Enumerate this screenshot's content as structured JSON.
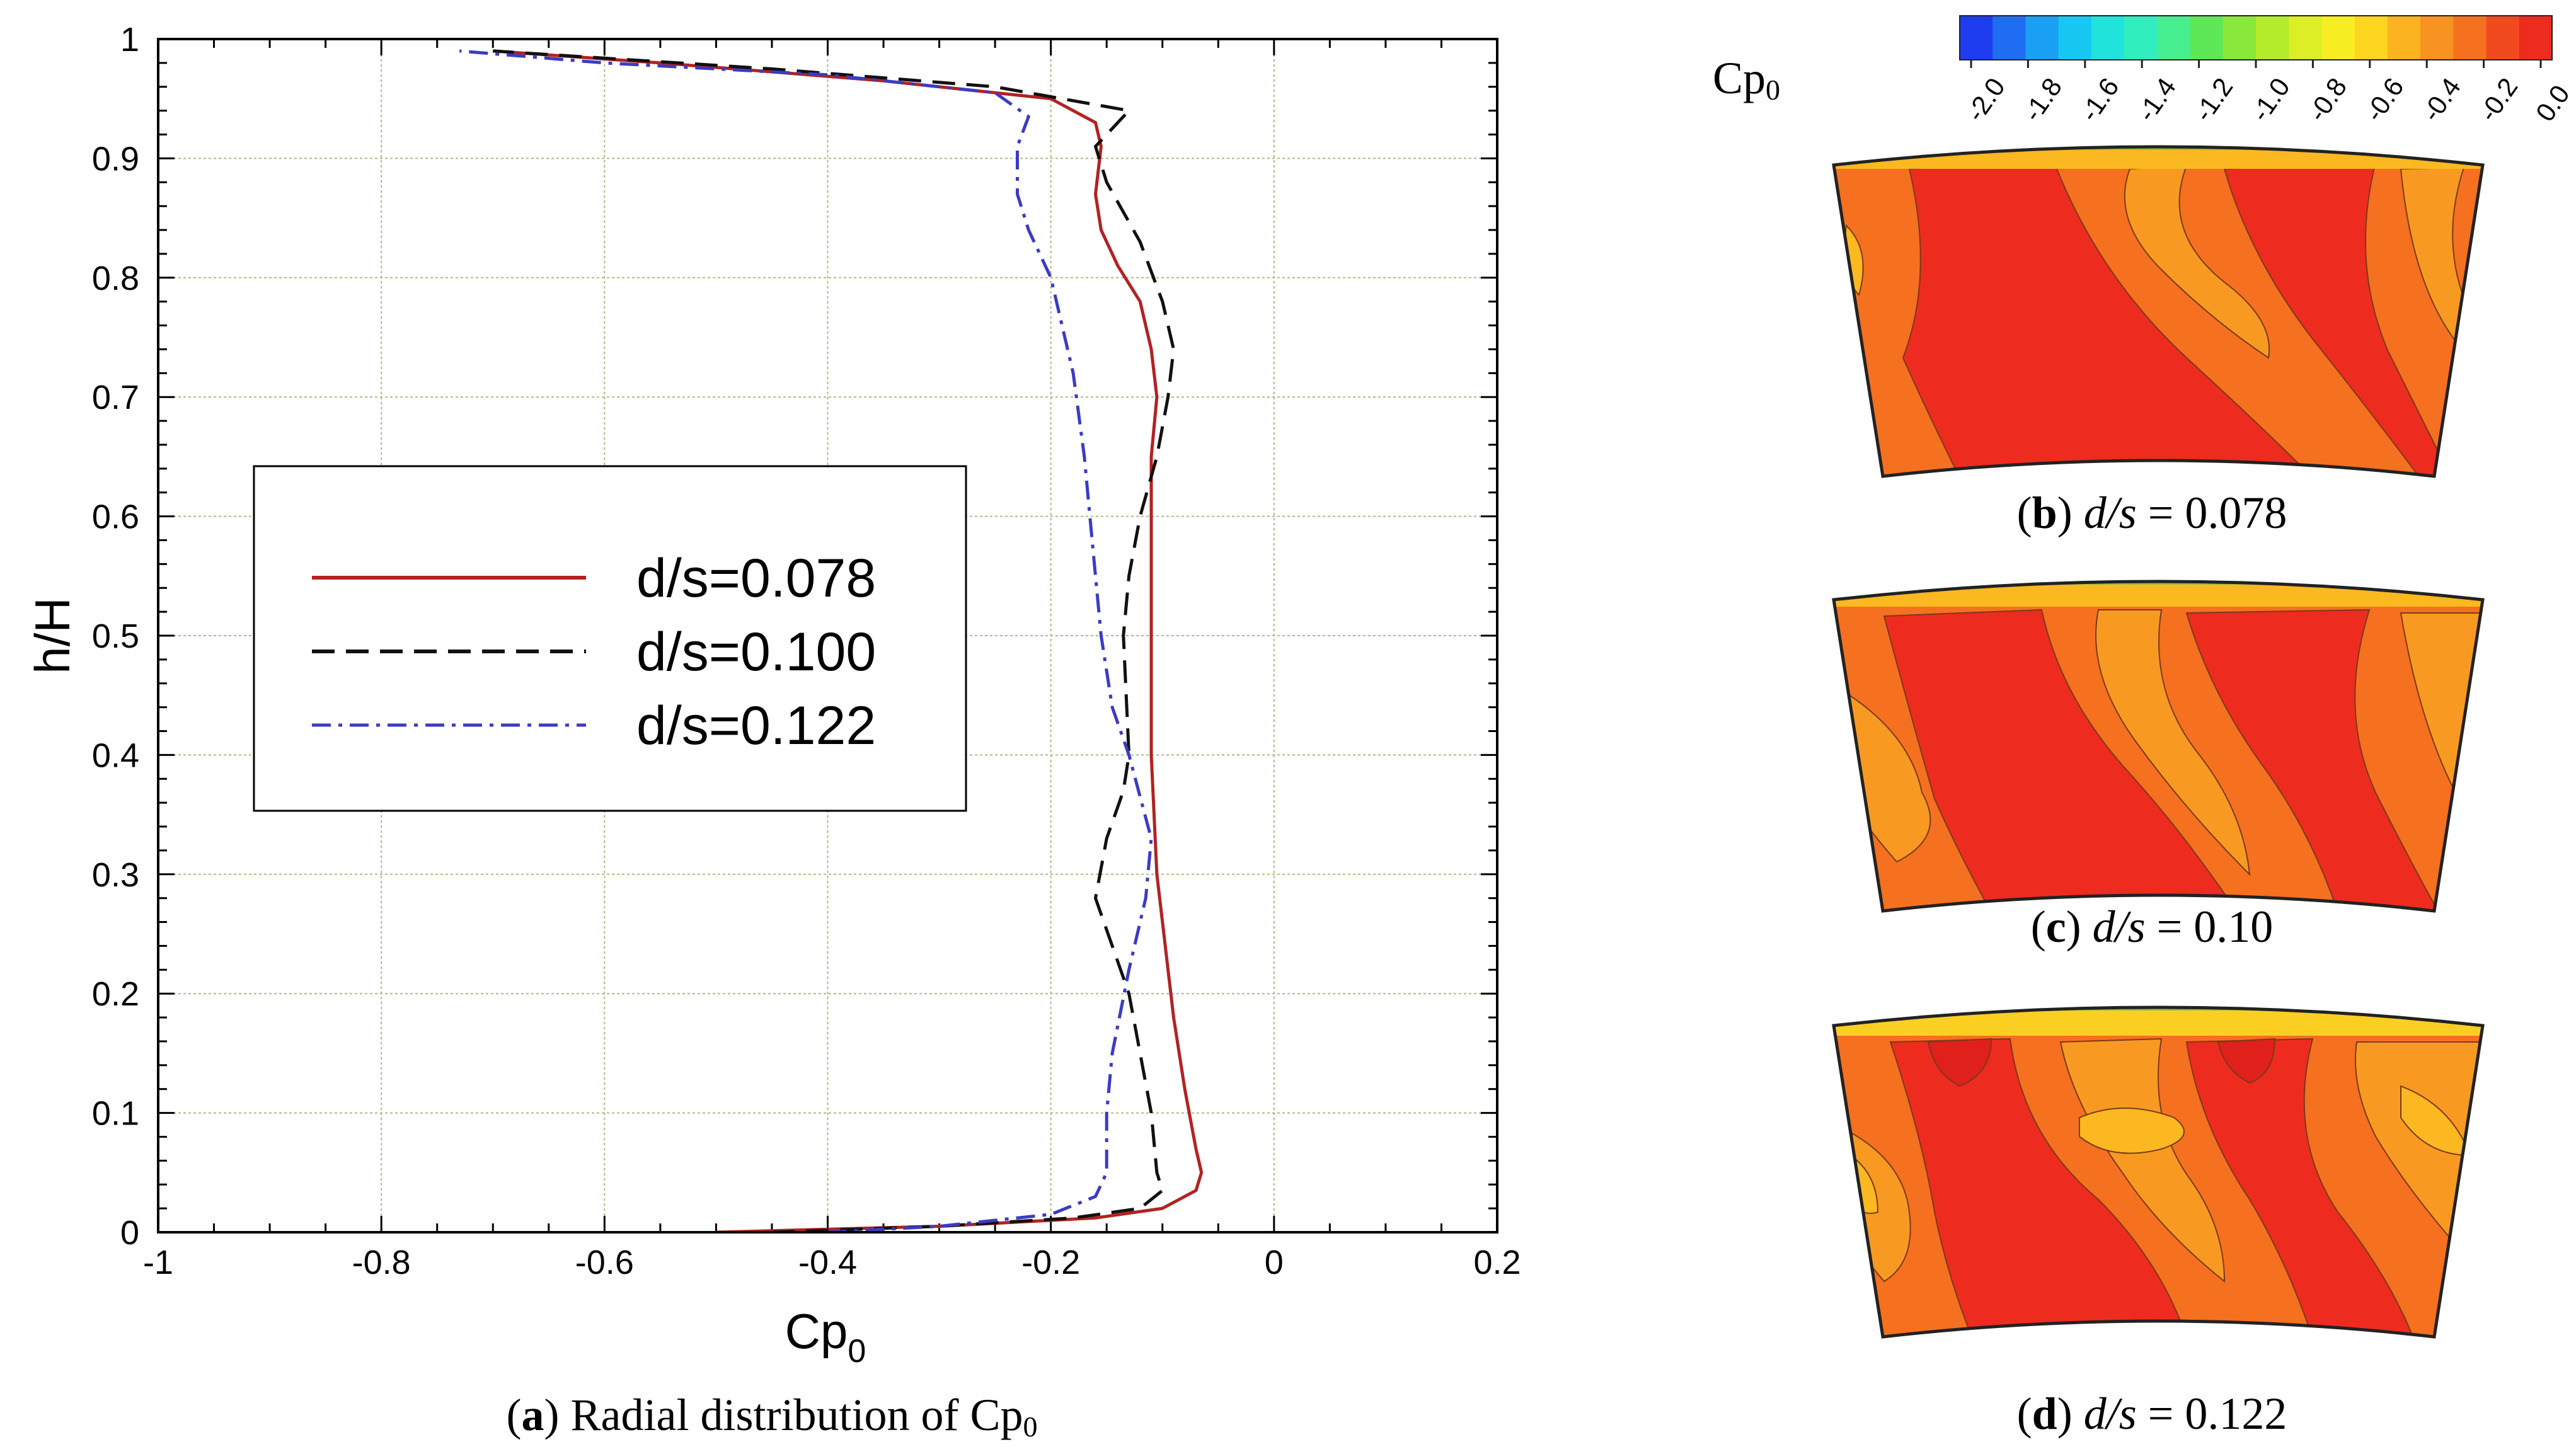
{
  "chart_data": [
    {
      "type": "line",
      "title": "",
      "xlabel": "Cp",
      "xlabel_sub": "0",
      "ylabel": "h/H",
      "xlim": [
        -1,
        0.2
      ],
      "ylim": [
        0,
        1
      ],
      "xticks": [
        -1,
        -0.8,
        -0.6,
        -0.4,
        -0.2,
        0,
        0.2
      ],
      "xtick_labels": [
        "-1",
        "-0.8",
        "-0.6",
        "-0.4",
        "-0.2",
        "0",
        "0.2"
      ],
      "yticks": [
        0,
        0.1,
        0.2,
        0.3,
        0.4,
        0.5,
        0.6,
        0.7,
        0.8,
        0.9,
        1
      ],
      "ytick_labels": [
        "0",
        "0.1",
        "0.2",
        "0.3",
        "0.4",
        "0.5",
        "0.6",
        "0.7",
        "0.8",
        "0.9",
        "1"
      ],
      "grid": true,
      "legend_position": "center-left",
      "series": [
        {
          "name": "d/s=0.078",
          "color": "#b22222",
          "style": "solid",
          "points": [
            [
              -0.5,
              0.0
            ],
            [
              -0.3,
              0.005
            ],
            [
              -0.16,
              0.012
            ],
            [
              -0.1,
              0.02
            ],
            [
              -0.07,
              0.035
            ],
            [
              -0.065,
              0.05
            ],
            [
              -0.07,
              0.07
            ],
            [
              -0.08,
              0.12
            ],
            [
              -0.09,
              0.18
            ],
            [
              -0.095,
              0.22
            ],
            [
              -0.1,
              0.26
            ],
            [
              -0.105,
              0.3
            ],
            [
              -0.11,
              0.4
            ],
            [
              -0.11,
              0.5
            ],
            [
              -0.11,
              0.6
            ],
            [
              -0.11,
              0.65
            ],
            [
              -0.105,
              0.7
            ],
            [
              -0.11,
              0.74
            ],
            [
              -0.12,
              0.78
            ],
            [
              -0.14,
              0.81
            ],
            [
              -0.155,
              0.84
            ],
            [
              -0.16,
              0.87
            ],
            [
              -0.155,
              0.91
            ],
            [
              -0.16,
              0.93
            ],
            [
              -0.2,
              0.95
            ],
            [
              -0.35,
              0.965
            ],
            [
              -0.55,
              0.98
            ],
            [
              -0.7,
              0.99
            ]
          ]
        },
        {
          "name": "d/s=0.100",
          "color": "#111111",
          "style": "dashed",
          "points": [
            [
              -0.45,
              0.0
            ],
            [
              -0.3,
              0.005
            ],
            [
              -0.18,
              0.012
            ],
            [
              -0.12,
              0.02
            ],
            [
              -0.1,
              0.035
            ],
            [
              -0.105,
              0.05
            ],
            [
              -0.11,
              0.1
            ],
            [
              -0.12,
              0.15
            ],
            [
              -0.13,
              0.2
            ],
            [
              -0.145,
              0.24
            ],
            [
              -0.16,
              0.28
            ],
            [
              -0.15,
              0.33
            ],
            [
              -0.135,
              0.37
            ],
            [
              -0.13,
              0.4
            ],
            [
              -0.135,
              0.5
            ],
            [
              -0.13,
              0.55
            ],
            [
              -0.12,
              0.6
            ],
            [
              -0.105,
              0.65
            ],
            [
              -0.095,
              0.7
            ],
            [
              -0.09,
              0.74
            ],
            [
              -0.1,
              0.78
            ],
            [
              -0.12,
              0.83
            ],
            [
              -0.15,
              0.88
            ],
            [
              -0.16,
              0.91
            ],
            [
              -0.13,
              0.94
            ],
            [
              -0.25,
              0.96
            ],
            [
              -0.45,
              0.975
            ],
            [
              -0.7,
              0.99
            ]
          ]
        },
        {
          "name": "d/s=0.122",
          "color": "#3b3bc4",
          "style": "dashdot",
          "points": [
            [
              -0.4,
              0.0
            ],
            [
              -0.3,
              0.005
            ],
            [
              -0.2,
              0.015
            ],
            [
              -0.16,
              0.03
            ],
            [
              -0.15,
              0.05
            ],
            [
              -0.15,
              0.1
            ],
            [
              -0.145,
              0.15
            ],
            [
              -0.13,
              0.22
            ],
            [
              -0.115,
              0.28
            ],
            [
              -0.11,
              0.33
            ],
            [
              -0.13,
              0.4
            ],
            [
              -0.145,
              0.44
            ],
            [
              -0.155,
              0.5
            ],
            [
              -0.16,
              0.55
            ],
            [
              -0.165,
              0.6
            ],
            [
              -0.17,
              0.65
            ],
            [
              -0.18,
              0.72
            ],
            [
              -0.2,
              0.8
            ],
            [
              -0.22,
              0.84
            ],
            [
              -0.23,
              0.87
            ],
            [
              -0.23,
              0.91
            ],
            [
              -0.22,
              0.935
            ],
            [
              -0.25,
              0.955
            ],
            [
              -0.4,
              0.97
            ],
            [
              -0.6,
              0.98
            ],
            [
              -0.73,
              0.99
            ]
          ]
        }
      ]
    },
    {
      "type": "heatmap",
      "title": "Cp0",
      "colorbar_label": "Cp",
      "colorbar_label_sub": "0",
      "colorbar_ticks": [
        "-2.0",
        "-1.8",
        "-1.6",
        "-1.4",
        "-1.2",
        "-1.0",
        "-0.8",
        "-0.6",
        "-0.4",
        "-0.2",
        "0.0"
      ],
      "colorbar_range": [
        -2.0,
        0.0
      ],
      "colorbar_colors": [
        "#1e3cf0",
        "#1f6ef2",
        "#1aa0f5",
        "#16c8f2",
        "#20e4dc",
        "#30eebe",
        "#47ee8f",
        "#5ee858",
        "#8ae83a",
        "#b4eb2a",
        "#dcee26",
        "#f6ee22",
        "#fdd620",
        "#fbb31f",
        "#f89220",
        "#f5701f",
        "#f24a1f",
        "#ee2b1f"
      ],
      "panels": [
        {
          "id": "b",
          "caption_letter": "b",
          "caption_var": "d/s",
          "caption_value": "= 0.078"
        },
        {
          "id": "c",
          "caption_letter": "c",
          "caption_var": "d/s",
          "caption_value": "= 0.10"
        },
        {
          "id": "d",
          "caption_letter": "d",
          "caption_var": "d/s",
          "caption_value": "= 0.122"
        }
      ]
    }
  ],
  "captions": {
    "a_letter": "a",
    "a_text": " Radial distribution of Cp",
    "a_sub": "0"
  },
  "colors": {
    "contour_red": "#ee2b1f",
    "contour_orange": "#f5701f",
    "contour_lightorange": "#f89a22",
    "contour_yellow": "#fbb820",
    "contour_green": "#8fbf3a"
  }
}
